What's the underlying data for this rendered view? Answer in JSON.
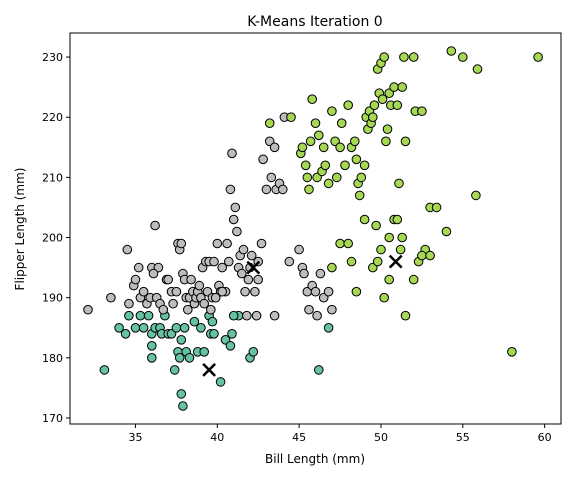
{
  "chart_data": {
    "type": "scatter",
    "title": "K-Means Iteration 0",
    "xlabel": "Bill Length (mm)",
    "ylabel": "Flipper Length (mm)",
    "xlim": [
      31.0,
      61.0
    ],
    "ylim": [
      169.0,
      234.0
    ],
    "x_ticks": [
      35,
      40,
      45,
      50,
      55,
      60
    ],
    "y_ticks": [
      170,
      180,
      190,
      200,
      210,
      220,
      230
    ],
    "grid": false,
    "legend": "none",
    "colors": {
      "cluster_0": "#66c2a5",
      "cluster_1": "#bdbdbd",
      "cluster_2": "#a6d854",
      "edge": "#000000",
      "centroid": "#000000"
    },
    "centroids": [
      {
        "cluster": 0,
        "x": 39.5,
        "y": 178
      },
      {
        "cluster": 1,
        "x": 42.2,
        "y": 195
      },
      {
        "cluster": 2,
        "x": 50.9,
        "y": 196
      }
    ],
    "series": [
      {
        "cluster": 0,
        "points": [
          [
            33.1,
            178
          ],
          [
            34.0,
            185
          ],
          [
            34.4,
            184
          ],
          [
            34.6,
            187
          ],
          [
            35.0,
            185
          ],
          [
            35.3,
            187
          ],
          [
            35.5,
            185
          ],
          [
            35.8,
            187
          ],
          [
            36.0,
            182
          ],
          [
            36.0,
            180
          ],
          [
            36.0,
            184
          ],
          [
            36.2,
            185
          ],
          [
            36.5,
            185
          ],
          [
            36.6,
            184
          ],
          [
            36.8,
            187
          ],
          [
            37.0,
            184
          ],
          [
            37.2,
            184
          ],
          [
            37.4,
            178
          ],
          [
            37.5,
            185
          ],
          [
            37.6,
            181
          ],
          [
            37.7,
            180
          ],
          [
            37.8,
            183
          ],
          [
            37.9,
            172
          ],
          [
            37.8,
            174
          ],
          [
            38.0,
            185
          ],
          [
            38.1,
            181
          ],
          [
            38.3,
            180
          ],
          [
            38.6,
            186
          ],
          [
            38.8,
            181
          ],
          [
            39.0,
            185
          ],
          [
            39.2,
            181
          ],
          [
            39.5,
            187
          ],
          [
            39.6,
            184
          ],
          [
            39.7,
            186
          ],
          [
            39.8,
            184
          ],
          [
            40.2,
            176
          ],
          [
            40.5,
            183
          ],
          [
            40.8,
            182
          ],
          [
            40.9,
            184
          ],
          [
            41.3,
            187
          ],
          [
            41.0,
            187
          ],
          [
            42.0,
            180
          ],
          [
            42.2,
            181
          ],
          [
            46.2,
            178
          ],
          [
            46.8,
            185
          ]
        ]
      },
      {
        "cluster": 1,
        "points": [
          [
            32.1,
            188
          ],
          [
            33.5,
            190
          ],
          [
            34.5,
            198
          ],
          [
            34.6,
            189
          ],
          [
            34.9,
            192
          ],
          [
            35.0,
            193
          ],
          [
            35.2,
            195
          ],
          [
            35.3,
            190
          ],
          [
            35.5,
            191
          ],
          [
            35.7,
            189
          ],
          [
            35.9,
            190
          ],
          [
            36.0,
            195
          ],
          [
            36.2,
            202
          ],
          [
            36.3,
            190
          ],
          [
            36.4,
            195
          ],
          [
            36.5,
            189
          ],
          [
            36.7,
            188
          ],
          [
            36.9,
            193
          ],
          [
            37.0,
            193
          ],
          [
            37.2,
            191
          ],
          [
            37.3,
            189
          ],
          [
            37.5,
            191
          ],
          [
            37.6,
            199
          ],
          [
            37.7,
            198
          ],
          [
            37.8,
            199
          ],
          [
            37.9,
            194
          ],
          [
            38.0,
            193
          ],
          [
            38.1,
            190
          ],
          [
            38.2,
            188
          ],
          [
            38.3,
            190
          ],
          [
            38.5,
            191
          ],
          [
            38.6,
            189
          ],
          [
            38.7,
            190
          ],
          [
            38.8,
            191
          ],
          [
            38.9,
            192
          ],
          [
            39.0,
            190
          ],
          [
            39.1,
            195
          ],
          [
            39.2,
            189
          ],
          [
            39.3,
            196
          ],
          [
            39.4,
            191
          ],
          [
            39.5,
            196
          ],
          [
            39.6,
            188
          ],
          [
            39.7,
            190
          ],
          [
            39.8,
            196
          ],
          [
            40.0,
            199
          ],
          [
            40.1,
            192
          ],
          [
            40.2,
            191
          ],
          [
            40.3,
            195
          ],
          [
            40.5,
            191
          ],
          [
            40.6,
            199
          ],
          [
            40.7,
            196
          ],
          [
            40.8,
            208
          ],
          [
            40.9,
            214
          ],
          [
            41.0,
            203
          ],
          [
            41.1,
            205
          ],
          [
            41.2,
            201
          ],
          [
            41.3,
            195
          ],
          [
            41.4,
            197
          ],
          [
            41.5,
            194
          ],
          [
            41.6,
            198
          ],
          [
            41.7,
            191
          ],
          [
            41.8,
            187
          ],
          [
            41.9,
            193
          ],
          [
            42.0,
            195
          ],
          [
            42.1,
            197
          ],
          [
            42.3,
            191
          ],
          [
            42.4,
            187
          ],
          [
            42.5,
            196
          ],
          [
            42.7,
            199
          ],
          [
            42.8,
            213
          ],
          [
            43.0,
            208
          ],
          [
            43.2,
            216
          ],
          [
            43.3,
            210
          ],
          [
            43.5,
            215
          ],
          [
            43.6,
            208
          ],
          [
            43.8,
            209
          ],
          [
            44.0,
            208
          ],
          [
            44.1,
            220
          ],
          [
            44.4,
            196
          ],
          [
            45.0,
            198
          ],
          [
            45.2,
            195
          ],
          [
            45.3,
            194
          ],
          [
            45.5,
            191
          ],
          [
            45.6,
            188
          ],
          [
            45.8,
            192
          ],
          [
            46.0,
            191
          ],
          [
            46.1,
            187
          ],
          [
            46.3,
            194
          ],
          [
            46.5,
            190
          ],
          [
            46.8,
            191
          ],
          [
            47.0,
            188
          ],
          [
            43.5,
            187
          ],
          [
            42.5,
            193
          ],
          [
            40.3,
            191
          ],
          [
            39.9,
            190
          ],
          [
            38.4,
            193
          ],
          [
            36.1,
            194
          ]
        ]
      },
      {
        "cluster": 2,
        "points": [
          [
            43.2,
            219
          ],
          [
            44.5,
            220
          ],
          [
            45.1,
            214
          ],
          [
            45.2,
            215
          ],
          [
            45.4,
            212
          ],
          [
            45.5,
            210
          ],
          [
            45.6,
            208
          ],
          [
            45.7,
            216
          ],
          [
            45.8,
            223
          ],
          [
            46.0,
            219
          ],
          [
            46.1,
            210
          ],
          [
            46.2,
            217
          ],
          [
            46.4,
            211
          ],
          [
            46.5,
            215
          ],
          [
            46.6,
            212
          ],
          [
            46.8,
            209
          ],
          [
            47.0,
            221
          ],
          [
            47.2,
            216
          ],
          [
            47.3,
            210
          ],
          [
            47.5,
            215
          ],
          [
            47.6,
            219
          ],
          [
            47.8,
            212
          ],
          [
            48.0,
            222
          ],
          [
            48.2,
            215
          ],
          [
            48.4,
            216
          ],
          [
            48.5,
            213
          ],
          [
            48.6,
            209
          ],
          [
            48.7,
            207
          ],
          [
            48.8,
            210
          ],
          [
            49.0,
            212
          ],
          [
            49.1,
            220
          ],
          [
            49.2,
            218
          ],
          [
            49.3,
            221
          ],
          [
            49.4,
            219
          ],
          [
            49.5,
            220
          ],
          [
            49.6,
            222
          ],
          [
            49.8,
            228
          ],
          [
            49.9,
            224
          ],
          [
            50.0,
            229
          ],
          [
            50.1,
            223
          ],
          [
            50.2,
            230
          ],
          [
            50.3,
            216
          ],
          [
            50.4,
            218
          ],
          [
            50.5,
            224
          ],
          [
            50.6,
            222
          ],
          [
            50.8,
            225
          ],
          [
            51.0,
            222
          ],
          [
            51.1,
            209
          ],
          [
            51.3,
            225
          ],
          [
            51.4,
            230
          ],
          [
            51.5,
            216
          ],
          [
            52.0,
            230
          ],
          [
            52.1,
            221
          ],
          [
            52.5,
            221
          ],
          [
            52.7,
            198
          ],
          [
            53.0,
            205
          ],
          [
            53.4,
            205
          ],
          [
            54.0,
            201
          ],
          [
            54.3,
            231
          ],
          [
            55.0,
            230
          ],
          [
            55.8,
            207
          ],
          [
            55.9,
            228
          ],
          [
            58.0,
            181
          ],
          [
            59.6,
            230
          ],
          [
            47.0,
            195
          ],
          [
            47.5,
            199
          ],
          [
            48.0,
            199
          ],
          [
            48.2,
            196
          ],
          [
            48.5,
            191
          ],
          [
            49.0,
            203
          ],
          [
            49.5,
            195
          ],
          [
            49.8,
            196
          ],
          [
            50.0,
            198
          ],
          [
            50.2,
            190
          ],
          [
            50.5,
            193
          ],
          [
            50.8,
            203
          ],
          [
            51.2,
            198
          ],
          [
            51.3,
            200
          ],
          [
            51.5,
            187
          ],
          [
            52.0,
            193
          ],
          [
            52.3,
            196
          ],
          [
            52.5,
            197
          ],
          [
            53.0,
            197
          ],
          [
            51.0,
            203
          ],
          [
            50.5,
            200
          ],
          [
            49.7,
            202
          ]
        ]
      }
    ]
  }
}
